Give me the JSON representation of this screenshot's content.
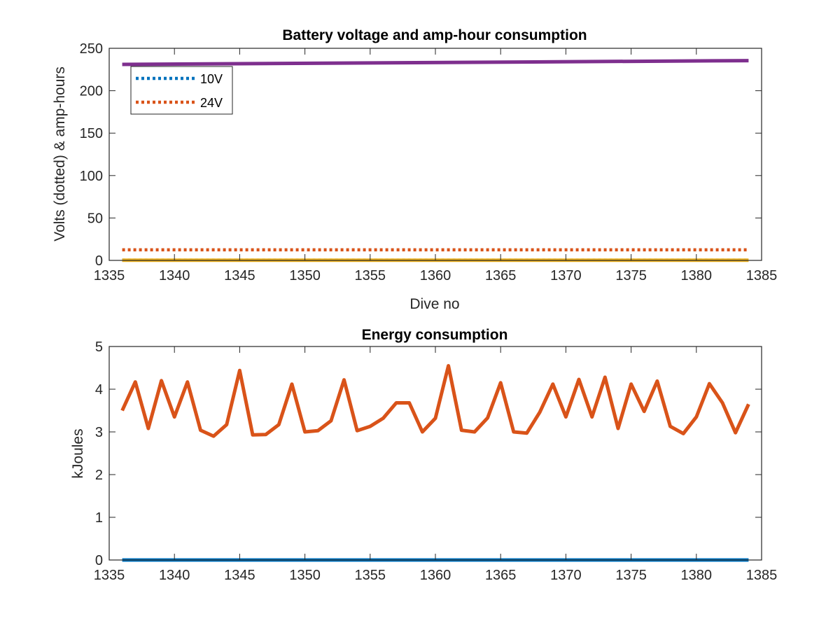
{
  "chart_data": [
    {
      "type": "line",
      "title": "Battery voltage and amp-hour consumption",
      "xlabel": "Dive no",
      "ylabel": "Volts (dotted) & amp-hours",
      "xlim": [
        1335,
        1385
      ],
      "ylim": [
        0,
        250
      ],
      "xticks": [
        1335,
        1340,
        1345,
        1350,
        1355,
        1360,
        1365,
        1370,
        1375,
        1380,
        1385
      ],
      "yticks": [
        0,
        50,
        100,
        150,
        200,
        250
      ],
      "grid": false,
      "legend_position": "top-left",
      "series": [
        {
          "name": "10V",
          "style": "dotted",
          "color": "#0072BD",
          "x": [
            1336,
            1384
          ],
          "values": [
            0.3,
            0.3
          ]
        },
        {
          "name": "24V",
          "style": "dotted",
          "color": "#D95319",
          "x": [
            1336,
            1384
          ],
          "values": [
            12.5,
            12.5
          ]
        },
        {
          "style": "solid",
          "color": "#EDB120",
          "x": [
            1336,
            1384
          ],
          "values": [
            0.2,
            0.2
          ]
        },
        {
          "style": "solid",
          "color": "#7E2F8E",
          "x": [
            1336,
            1384
          ],
          "values": [
            231,
            235.5
          ]
        }
      ]
    },
    {
      "type": "line",
      "title": "Energy consumption",
      "xlabel": "",
      "ylabel": "kJoules",
      "xlim": [
        1335,
        1385
      ],
      "ylim": [
        0,
        5
      ],
      "xticks": [
        1335,
        1340,
        1345,
        1350,
        1355,
        1360,
        1365,
        1370,
        1375,
        1380,
        1385
      ],
      "yticks": [
        0,
        1,
        2,
        3,
        4,
        5
      ],
      "grid": false,
      "series": [
        {
          "style": "solid",
          "color": "#0072BD",
          "x": [
            1336,
            1384
          ],
          "values": [
            0,
            0
          ]
        },
        {
          "style": "solid",
          "color": "#D95319",
          "x": [
            1336,
            1337,
            1338,
            1339,
            1340,
            1341,
            1342,
            1343,
            1344,
            1345,
            1346,
            1347,
            1348,
            1349,
            1350,
            1351,
            1352,
            1353,
            1354,
            1355,
            1356,
            1357,
            1358,
            1359,
            1360,
            1361,
            1362,
            1363,
            1364,
            1365,
            1366,
            1367,
            1368,
            1369,
            1370,
            1371,
            1372,
            1373,
            1374,
            1375,
            1376,
            1377,
            1378,
            1379,
            1380,
            1381,
            1382,
            1383,
            1384
          ],
          "values": [
            3.5,
            4.17,
            3.08,
            4.2,
            3.35,
            4.17,
            3.04,
            2.9,
            3.17,
            4.44,
            2.93,
            2.94,
            3.17,
            4.12,
            3.0,
            3.03,
            3.26,
            4.22,
            3.03,
            3.13,
            3.32,
            3.68,
            3.68,
            3.0,
            3.32,
            4.55,
            3.04,
            3.0,
            3.33,
            4.15,
            3.0,
            2.97,
            3.46,
            4.12,
            3.35,
            4.23,
            3.35,
            4.28,
            3.08,
            4.12,
            3.48,
            4.19,
            3.13,
            2.96,
            3.35,
            4.13,
            3.68,
            2.98,
            3.65
          ]
        }
      ]
    }
  ]
}
